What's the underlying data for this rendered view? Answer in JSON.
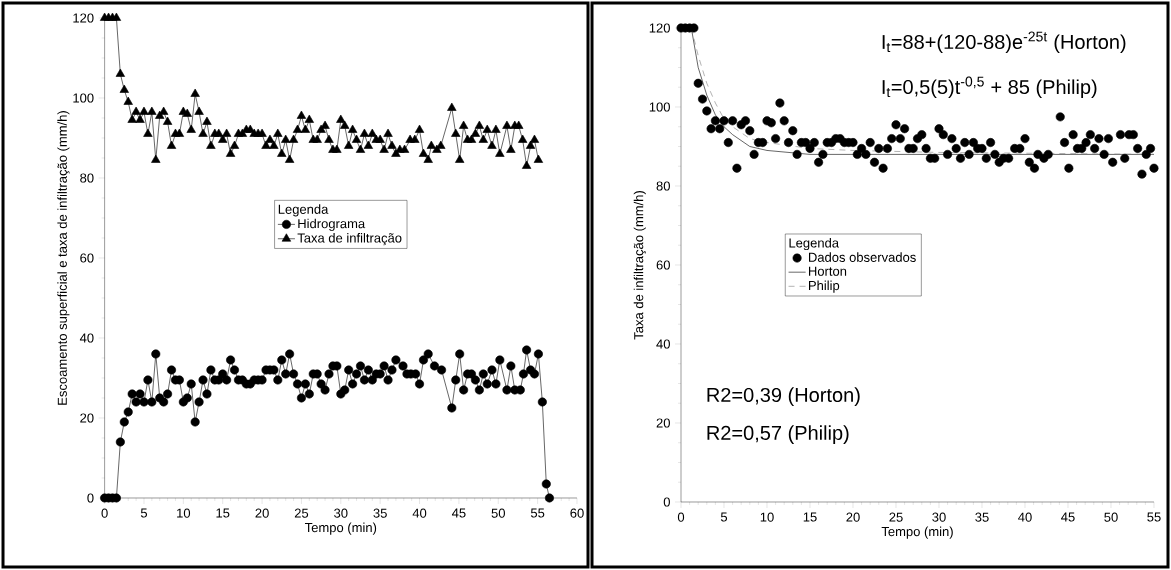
{
  "chart_data": [
    {
      "type": "line",
      "xlabel": "Tempo (min)",
      "ylabel": "Escoamento superficial e taxa de infiltração (mm/h)",
      "xlim": [
        0,
        60
      ],
      "ylim": [
        0,
        120
      ],
      "xticks": [
        0,
        5,
        10,
        15,
        20,
        25,
        30,
        35,
        40,
        45,
        50,
        55,
        60
      ],
      "yticks": [
        0,
        20,
        40,
        60,
        80,
        100,
        120
      ],
      "legend": "center",
      "legend_title": "Legenda",
      "series": [
        {
          "name": "Hidrograma",
          "color": "#000000",
          "marker": "circle",
          "x": [
            0,
            0.5,
            1,
            1.5,
            2,
            2.5,
            3,
            3.5,
            4,
            4.5,
            5,
            5.5,
            6,
            6.5,
            7,
            7.5,
            8,
            8.5,
            9,
            9.5,
            10,
            10.5,
            11,
            11.5,
            12,
            12.5,
            13,
            13.5,
            14,
            14.5,
            15,
            15.5,
            16,
            16.5,
            17,
            17.5,
            18,
            18.5,
            19,
            19.5,
            20,
            20.5,
            21,
            21.5,
            22,
            22.5,
            23,
            23.5,
            24,
            24.5,
            25,
            25.5,
            26,
            26.5,
            27,
            27.5,
            28,
            28.5,
            29,
            29.5,
            30,
            30.5,
            31,
            31.5,
            32,
            32.5,
            33,
            33.5,
            34,
            34.5,
            35,
            35.5,
            36,
            36.5,
            37,
            37.9,
            38.4,
            38.9,
            39.5,
            40,
            40.5,
            41.1,
            41.9,
            42.8,
            44.1,
            44.6,
            45.1,
            45.6,
            46.1,
            46.6,
            47.1,
            47.6,
            48.1,
            48.6,
            49.2,
            49.7,
            50.2,
            51.1,
            51.6,
            52.1,
            52.8,
            53.2,
            53.6,
            54.1,
            54.6,
            55.1,
            55.6,
            56.1,
            56.5
          ],
          "values": [
            0,
            0,
            0,
            0,
            14,
            19,
            21.5,
            26,
            24,
            26,
            24,
            29.5,
            24,
            36,
            25,
            24,
            26,
            32,
            29.5,
            29.5,
            24,
            25,
            28.5,
            19,
            24,
            29.5,
            26,
            32,
            29.5,
            29.5,
            31,
            29.5,
            34.5,
            32,
            29.5,
            29.5,
            28.5,
            28.5,
            29.5,
            29.5,
            29.5,
            32,
            32,
            32,
            29.5,
            34.5,
            31,
            36,
            31,
            28.5,
            25,
            28.5,
            26,
            31,
            31,
            28.5,
            27,
            31,
            33,
            33,
            26,
            27,
            32,
            28.5,
            31,
            33,
            29.5,
            32,
            29.5,
            31,
            31,
            33,
            29.5,
            32,
            34.5,
            33,
            31,
            31,
            31,
            28.5,
            34.5,
            36,
            33,
            32,
            22.5,
            29.5,
            36,
            27,
            31,
            31,
            29.5,
            27,
            31,
            28.5,
            32,
            28.5,
            34.5,
            27,
            33,
            27,
            27,
            31,
            37,
            32,
            31,
            36,
            24,
            3.5,
            0
          ]
        },
        {
          "name": "Taxa de infiltração",
          "color": "#000000",
          "marker": "triangle",
          "x": [
            0,
            0.5,
            1,
            1.5,
            2,
            2.5,
            3,
            3.5,
            4,
            4.5,
            5,
            5.5,
            6,
            6.5,
            7,
            7.5,
            8,
            8.5,
            9,
            9.5,
            10,
            10.5,
            11,
            11.5,
            12,
            12.5,
            13,
            13.5,
            14,
            14.5,
            15,
            15.5,
            16,
            16.5,
            17,
            17.5,
            18,
            18.5,
            19,
            19.5,
            20,
            20.5,
            21,
            21.5,
            22,
            22.5,
            23,
            23.5,
            24,
            24.5,
            25,
            25.5,
            26,
            26.5,
            27,
            27.5,
            28,
            28.5,
            29,
            29.5,
            30,
            30.5,
            31,
            31.5,
            32,
            32.5,
            33,
            33.5,
            34,
            34.5,
            35,
            35.5,
            36,
            36.5,
            37,
            37.5,
            38.1,
            38.8,
            39.4,
            40,
            40.5,
            41.1,
            41.5,
            42.2,
            42.7,
            44.1,
            44.6,
            45.1,
            45.6,
            46.1,
            46.6,
            47.1,
            47.6,
            48.1,
            48.6,
            49.2,
            49.7,
            50.2,
            51.1,
            51.6,
            52.1,
            52.6,
            53.1,
            53.6,
            54.1,
            54.6,
            55.1
          ],
          "values": [
            120,
            120,
            120,
            120,
            106,
            102,
            99,
            94.5,
            96.5,
            94.5,
            96.5,
            91,
            96.5,
            84.5,
            95.5,
            96.5,
            94,
            88,
            91,
            91,
            96.5,
            96,
            92,
            101,
            96.5,
            91,
            94,
            88,
            91,
            91,
            89.5,
            91,
            86,
            88,
            91,
            91,
            92,
            92,
            91,
            91,
            91,
            88,
            89.5,
            88,
            91,
            86,
            89.5,
            84.5,
            89.5,
            92,
            95.5,
            92,
            94.5,
            89.5,
            89.5,
            92,
            93,
            89.5,
            87,
            87,
            94.5,
            93,
            88,
            92,
            89.5,
            87,
            91,
            88,
            91,
            89.5,
            89.5,
            87,
            91,
            88,
            86,
            87,
            87,
            89.5,
            89.5,
            92,
            86,
            84.5,
            88,
            87,
            88,
            97.5,
            91,
            84.5,
            93,
            89.5,
            89.5,
            91,
            93,
            89.5,
            92,
            88,
            92,
            86,
            93,
            87,
            93,
            93,
            89.5,
            83,
            88,
            89.5,
            84.5
          ]
        }
      ]
    },
    {
      "type": "line",
      "xlabel": "Tempo (min)",
      "ylabel": "Taxa de infiltração (mm/h)",
      "xlim": [
        0,
        55
      ],
      "ylim": [
        0,
        120
      ],
      "xticks": [
        0,
        5,
        10,
        15,
        20,
        25,
        30,
        35,
        40,
        45,
        50,
        55
      ],
      "yticks": [
        0,
        20,
        40,
        60,
        80,
        100,
        120
      ],
      "legend": "left",
      "legend_title": "Legenda",
      "annotations": [
        "I$_{t}$=88+(120-88)e$^{-25t}$  (Horton)",
        "I$_{t}$=0,5(5)t$^{-0,5}$ + 85 (Philip)",
        "R2=0,39 (Horton)",
        "R2=0,57 (Philip)"
      ],
      "series": [
        {
          "name": "Dados observados",
          "type": "scatter",
          "color": "#000000",
          "marker": "circle",
          "x": [
            0,
            0.5,
            1,
            1.5,
            2,
            2.5,
            3,
            3.5,
            4,
            4.5,
            5,
            5.5,
            6,
            6.5,
            7,
            7.5,
            8,
            8.5,
            9,
            9.5,
            10,
            10.5,
            11,
            11.5,
            12,
            12.5,
            13,
            13.5,
            14,
            14.5,
            15,
            15.5,
            16,
            16.5,
            17,
            17.5,
            18,
            18.5,
            19,
            19.5,
            20,
            20.5,
            21,
            21.5,
            22,
            22.5,
            23,
            23.5,
            24,
            24.5,
            25,
            25.5,
            26,
            26.5,
            27,
            27.5,
            28,
            28.5,
            29,
            29.5,
            30,
            30.5,
            31,
            31.5,
            32,
            32.5,
            33,
            33.5,
            34,
            34.5,
            35,
            35.5,
            36,
            36.5,
            37,
            37.5,
            38.1,
            38.8,
            39.4,
            40,
            40.5,
            41.1,
            41.5,
            42.2,
            42.7,
            44.1,
            44.6,
            45.1,
            45.6,
            46.1,
            46.6,
            47.1,
            47.6,
            48.1,
            48.6,
            49.2,
            49.7,
            50.2,
            51.1,
            51.6,
            52.1,
            52.6,
            53.1,
            53.6,
            54.1,
            54.6,
            55
          ],
          "values": [
            120,
            120,
            120,
            120,
            106,
            102,
            99,
            94.5,
            96.5,
            94.5,
            96.5,
            91,
            96.5,
            84.5,
            95.5,
            96.5,
            94,
            88,
            91,
            91,
            96.5,
            96,
            92,
            101,
            96.5,
            91,
            94,
            88,
            91,
            91,
            89.5,
            91,
            86,
            88,
            91,
            91,
            92,
            92,
            91,
            91,
            91,
            88,
            89.5,
            88,
            91,
            86,
            89.5,
            84.5,
            89.5,
            92,
            95.5,
            92,
            94.5,
            89.5,
            89.5,
            92,
            93,
            89.5,
            87,
            87,
            94.5,
            93,
            88,
            92,
            89.5,
            87,
            91,
            88,
            91,
            89.5,
            89.5,
            87,
            91,
            88,
            86,
            87,
            87,
            89.5,
            89.5,
            92,
            86,
            84.5,
            88,
            87,
            88,
            97.5,
            91,
            84.5,
            93,
            89.5,
            89.5,
            91,
            93,
            89.5,
            92,
            88,
            92,
            86,
            93,
            87,
            93,
            93,
            89.5,
            83,
            88,
            89.5,
            84.5
          ]
        },
        {
          "name": "Horton",
          "type": "line",
          "color": "#000000",
          "marker": "none",
          "line_style": "solid",
          "x": [
            1.2,
            2,
            3,
            4,
            5,
            6,
            8,
            10,
            15,
            55
          ],
          "values": [
            120,
            110,
            103,
            98,
            95,
            93,
            90,
            89,
            88,
            88
          ]
        },
        {
          "name": "Philip",
          "type": "line",
          "color": "#808080",
          "marker": "none",
          "line_style": "dashed",
          "x": [
            1.2,
            2,
            3,
            4,
            5,
            6,
            8,
            10,
            15,
            20,
            30,
            55
          ],
          "values": [
            120,
            113,
            106,
            101,
            97,
            95,
            92,
            91,
            89.5,
            89,
            88.5,
            88
          ]
        }
      ]
    }
  ]
}
